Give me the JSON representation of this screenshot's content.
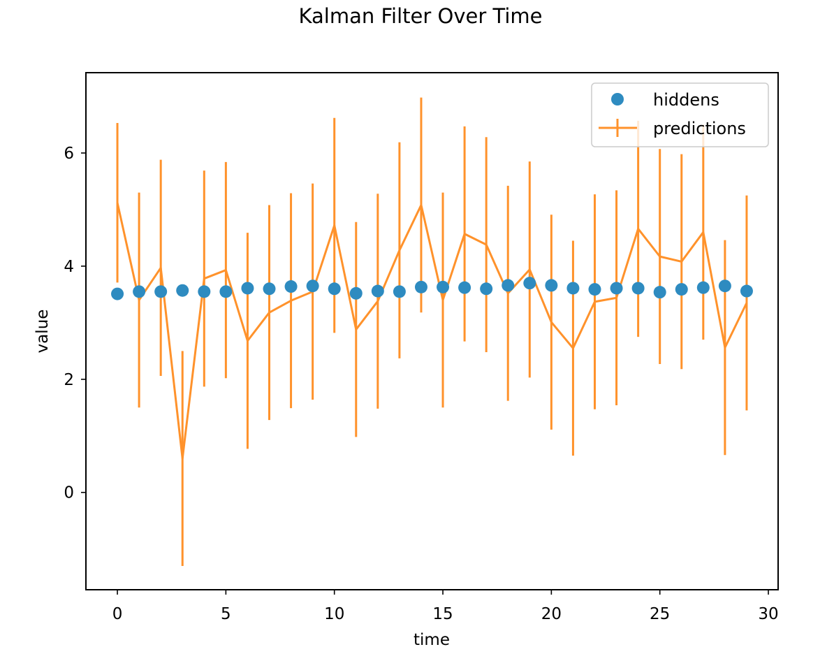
{
  "chart_data": {
    "type": "scatter",
    "title": "Kalman Filter Over Time",
    "xlabel": "time",
    "ylabel": "value",
    "xlim": [
      -1.45,
      30.45
    ],
    "ylim": [
      -1.72,
      7.42
    ],
    "xticks": [
      0,
      5,
      10,
      15,
      20,
      25,
      30
    ],
    "yticks": [
      0,
      2,
      4,
      6
    ],
    "legend_position": "upper right",
    "grid": false,
    "series": [
      {
        "name": "hiddens",
        "kind": "scatter",
        "color": "#2e8bc0",
        "x": [
          0,
          1,
          2,
          3,
          4,
          5,
          6,
          7,
          8,
          9,
          10,
          11,
          12,
          13,
          14,
          15,
          16,
          17,
          18,
          19,
          20,
          21,
          22,
          23,
          24,
          25,
          26,
          27,
          28,
          29
        ],
        "y": [
          3.51,
          3.55,
          3.55,
          3.57,
          3.55,
          3.55,
          3.61,
          3.6,
          3.64,
          3.65,
          3.6,
          3.52,
          3.56,
          3.55,
          3.63,
          3.63,
          3.62,
          3.6,
          3.66,
          3.7,
          3.66,
          3.61,
          3.59,
          3.61,
          3.61,
          3.54,
          3.59,
          3.62,
          3.65,
          3.56
        ]
      },
      {
        "name": "predictions",
        "kind": "errorbar-line",
        "color": "#ff922b",
        "x": [
          0,
          1,
          2,
          3,
          4,
          5,
          6,
          7,
          8,
          9,
          10,
          11,
          12,
          13,
          14,
          15,
          16,
          17,
          18,
          19,
          20,
          21,
          22,
          23,
          24,
          25,
          26,
          27,
          28,
          29
        ],
        "y": [
          5.12,
          3.4,
          3.97,
          0.6,
          3.78,
          3.93,
          2.68,
          3.18,
          3.39,
          3.55,
          4.72,
          2.88,
          3.38,
          4.28,
          5.08,
          3.4,
          4.57,
          4.38,
          3.52,
          3.94,
          3.01,
          2.55,
          3.37,
          3.44,
          4.66,
          4.17,
          4.08,
          4.6,
          2.56,
          3.35
        ],
        "yerr": [
          1.41,
          1.9,
          1.91,
          1.9,
          1.91,
          1.91,
          1.91,
          1.9,
          1.9,
          1.91,
          1.9,
          1.9,
          1.9,
          1.91,
          1.9,
          1.9,
          1.9,
          1.9,
          1.9,
          1.91,
          1.9,
          1.9,
          1.9,
          1.9,
          1.91,
          1.9,
          1.9,
          1.9,
          1.9,
          1.9
        ]
      }
    ]
  }
}
